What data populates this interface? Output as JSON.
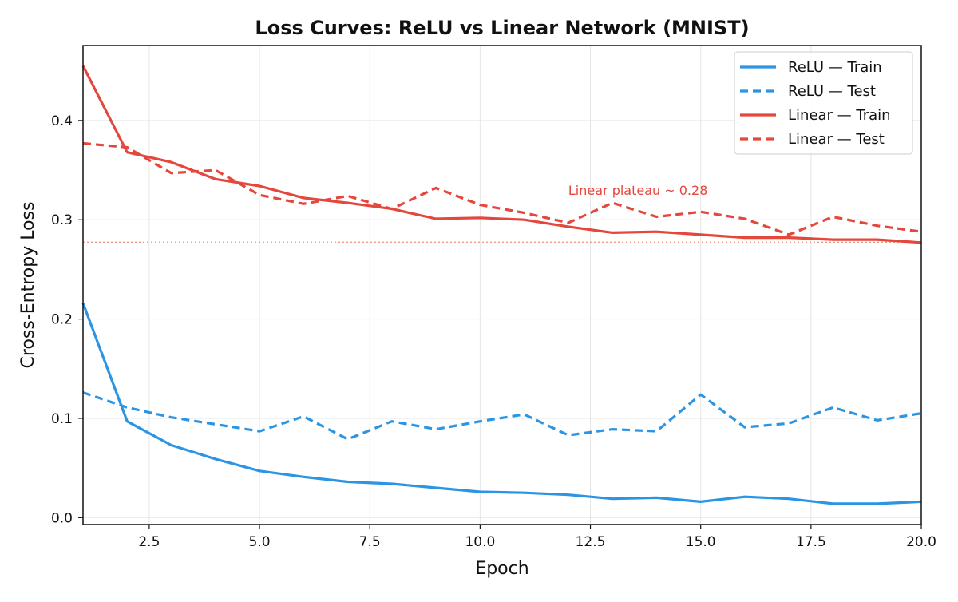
{
  "chart_data": {
    "type": "line",
    "title": "Loss Curves: ReLU vs Linear Network (MNIST)",
    "xlabel": "Epoch",
    "ylabel": "Cross-Entropy Loss",
    "xlim": [
      1,
      20
    ],
    "ylim": [
      -0.007,
      0.4755
    ],
    "x_ticks": [
      2.5,
      5.0,
      7.5,
      10.0,
      12.5,
      15.0,
      17.5,
      20.0
    ],
    "x_tick_labels": [
      "2.5",
      "5.0",
      "7.5",
      "10.0",
      "12.5",
      "15.0",
      "17.5",
      "20.0"
    ],
    "y_ticks": [
      0.0,
      0.1,
      0.2,
      0.3,
      0.4
    ],
    "y_tick_labels": [
      "0.0",
      "0.1",
      "0.2",
      "0.3",
      "0.4"
    ],
    "grid": true,
    "legend_position": "top-right",
    "x": [
      1,
      2,
      3,
      4,
      5,
      6,
      7,
      8,
      9,
      10,
      11,
      12,
      13,
      14,
      15,
      16,
      17,
      18,
      19,
      20
    ],
    "series": [
      {
        "name": "ReLU — Train",
        "color": "#2b95e4",
        "style": "solid",
        "values": [
          0.216,
          0.097,
          0.073,
          0.059,
          0.047,
          0.041,
          0.036,
          0.034,
          0.03,
          0.026,
          0.025,
          0.023,
          0.019,
          0.02,
          0.016,
          0.021,
          0.019,
          0.014,
          0.014,
          0.016
        ]
      },
      {
        "name": "ReLU — Test",
        "color": "#2b95e4",
        "style": "dashed",
        "values": [
          0.126,
          0.111,
          0.101,
          0.094,
          0.087,
          0.102,
          0.079,
          0.097,
          0.089,
          0.097,
          0.104,
          0.083,
          0.089,
          0.087,
          0.124,
          0.091,
          0.095,
          0.111,
          0.098,
          0.105
        ]
      },
      {
        "name": "Linear — Train",
        "color": "#e4473c",
        "style": "solid",
        "values": [
          0.455,
          0.368,
          0.358,
          0.341,
          0.334,
          0.322,
          0.317,
          0.311,
          0.301,
          0.302,
          0.3,
          0.293,
          0.287,
          0.288,
          0.285,
          0.282,
          0.282,
          0.28,
          0.28,
          0.277
        ]
      },
      {
        "name": "Linear — Test",
        "color": "#e4473c",
        "style": "dashed",
        "values": [
          0.377,
          0.373,
          0.347,
          0.35,
          0.325,
          0.316,
          0.324,
          0.311,
          0.332,
          0.315,
          0.307,
          0.297,
          0.317,
          0.303,
          0.308,
          0.301,
          0.285,
          0.303,
          0.294,
          0.288
        ]
      }
    ],
    "reference_line": {
      "y": 0.2775,
      "color": "#f0907a",
      "style": "dotted"
    },
    "annotation": {
      "text": "Linear plateau ~ 0.28",
      "x": 12.0,
      "y": 0.325,
      "color": "#e4473c"
    }
  }
}
